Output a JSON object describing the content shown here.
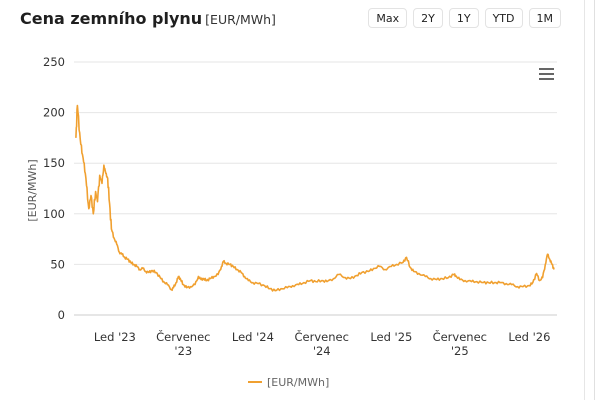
{
  "header": {
    "title": "Cena zemního plynu",
    "unit": "[EUR/MWh]"
  },
  "range_buttons": [
    "Max",
    "2Y",
    "1Y",
    "YTD",
    "1M"
  ],
  "menu_icon": "hamburger-menu-icon",
  "colors": {
    "series": "#f0a030",
    "grid": "#e6e6e6",
    "axis_text": "#333333"
  },
  "chart_data": {
    "type": "line",
    "title": "Cena zemního plynu",
    "ylabel": "[EUR/MWh]",
    "ylim": [
      0,
      250
    ],
    "yticks": [
      "0",
      "50",
      "100",
      "150",
      "200",
      "250"
    ],
    "xlim": [
      "2022-09-15",
      "2026-03-15"
    ],
    "xticks": [
      {
        "date": "2023-01-01",
        "label": [
          "Led '23"
        ]
      },
      {
        "date": "2023-07-01",
        "label": [
          "Červenec",
          "'23"
        ]
      },
      {
        "date": "2024-01-01",
        "label": [
          "Led '24"
        ]
      },
      {
        "date": "2024-07-01",
        "label": [
          "Červenec",
          "'24"
        ]
      },
      {
        "date": "2025-01-01",
        "label": [
          "Led '25"
        ]
      },
      {
        "date": "2025-07-01",
        "label": [
          "Červenec",
          "'25"
        ]
      },
      {
        "date": "2026-01-01",
        "label": [
          "Led '26"
        ]
      }
    ],
    "grid": "horizontal",
    "legend": "bottom",
    "series": [
      {
        "name": "[EUR/MWh]",
        "points": [
          [
            "2022-09-20",
            175
          ],
          [
            "2022-09-24",
            207
          ],
          [
            "2022-09-30",
            180
          ],
          [
            "2022-10-06",
            160
          ],
          [
            "2022-10-12",
            150
          ],
          [
            "2022-10-18",
            128
          ],
          [
            "2022-10-24",
            105
          ],
          [
            "2022-10-30",
            118
          ],
          [
            "2022-11-05",
            100
          ],
          [
            "2022-11-11",
            122
          ],
          [
            "2022-11-16",
            112
          ],
          [
            "2022-11-22",
            138
          ],
          [
            "2022-11-28",
            130
          ],
          [
            "2022-12-03",
            148
          ],
          [
            "2022-12-08",
            140
          ],
          [
            "2022-12-13",
            135
          ],
          [
            "2022-12-18",
            110
          ],
          [
            "2022-12-23",
            85
          ],
          [
            "2022-12-30",
            76
          ],
          [
            "2023-01-06",
            70
          ],
          [
            "2023-01-13",
            62
          ],
          [
            "2023-01-20",
            60
          ],
          [
            "2023-01-27",
            57
          ],
          [
            "2023-02-04",
            55
          ],
          [
            "2023-02-12",
            52
          ],
          [
            "2023-02-20",
            50
          ],
          [
            "2023-02-28",
            48
          ],
          [
            "2023-03-08",
            45
          ],
          [
            "2023-03-16",
            46
          ],
          [
            "2023-03-24",
            43
          ],
          [
            "2023-04-01",
            42
          ],
          [
            "2023-04-10",
            44
          ],
          [
            "2023-04-20",
            42
          ],
          [
            "2023-05-01",
            37
          ],
          [
            "2023-05-10",
            33
          ],
          [
            "2023-05-20",
            30
          ],
          [
            "2023-05-31",
            25
          ],
          [
            "2023-06-05",
            27
          ],
          [
            "2023-06-12",
            32
          ],
          [
            "2023-06-18",
            38
          ],
          [
            "2023-06-24",
            35
          ],
          [
            "2023-07-01",
            30
          ],
          [
            "2023-07-10",
            27
          ],
          [
            "2023-07-20",
            28
          ],
          [
            "2023-08-01",
            30
          ],
          [
            "2023-08-10",
            38
          ],
          [
            "2023-08-17",
            35
          ],
          [
            "2023-08-24",
            36
          ],
          [
            "2023-09-01",
            34
          ],
          [
            "2023-09-10",
            36
          ],
          [
            "2023-09-20",
            38
          ],
          [
            "2023-10-01",
            40
          ],
          [
            "2023-10-10",
            48
          ],
          [
            "2023-10-15",
            53
          ],
          [
            "2023-10-22",
            51
          ],
          [
            "2023-11-01",
            50
          ],
          [
            "2023-11-10",
            48
          ],
          [
            "2023-11-20",
            45
          ],
          [
            "2023-12-01",
            42
          ],
          [
            "2023-12-10",
            38
          ],
          [
            "2023-12-20",
            34
          ],
          [
            "2024-01-01",
            32
          ],
          [
            "2024-01-15",
            31
          ],
          [
            "2024-02-01",
            29
          ],
          [
            "2024-02-15",
            26
          ],
          [
            "2024-02-29",
            24
          ],
          [
            "2024-03-15",
            26
          ],
          [
            "2024-04-01",
            27
          ],
          [
            "2024-04-15",
            29
          ],
          [
            "2024-05-01",
            30
          ],
          [
            "2024-05-15",
            32
          ],
          [
            "2024-06-01",
            34
          ],
          [
            "2024-06-15",
            33
          ],
          [
            "2024-07-01",
            34
          ],
          [
            "2024-07-15",
            33
          ],
          [
            "2024-08-01",
            36
          ],
          [
            "2024-08-15",
            40
          ],
          [
            "2024-09-01",
            37
          ],
          [
            "2024-09-15",
            36
          ],
          [
            "2024-10-01",
            39
          ],
          [
            "2024-10-15",
            42
          ],
          [
            "2024-11-01",
            43
          ],
          [
            "2024-11-15",
            46
          ],
          [
            "2024-12-01",
            48
          ],
          [
            "2024-12-15",
            45
          ],
          [
            "2025-01-01",
            48
          ],
          [
            "2025-01-15",
            50
          ],
          [
            "2025-02-01",
            52
          ],
          [
            "2025-02-10",
            57
          ],
          [
            "2025-02-20",
            47
          ],
          [
            "2025-03-01",
            43
          ],
          [
            "2025-03-15",
            41
          ],
          [
            "2025-04-01",
            38
          ],
          [
            "2025-04-15",
            36
          ],
          [
            "2025-05-01",
            35
          ],
          [
            "2025-05-15",
            36
          ],
          [
            "2025-06-01",
            37
          ],
          [
            "2025-06-15",
            40
          ],
          [
            "2025-06-20",
            39
          ],
          [
            "2025-07-01",
            35
          ],
          [
            "2025-07-15",
            34
          ],
          [
            "2025-08-01",
            33
          ],
          [
            "2025-08-15",
            33
          ],
          [
            "2025-09-01",
            32
          ],
          [
            "2025-09-15",
            32
          ],
          [
            "2025-10-01",
            32
          ],
          [
            "2025-10-15",
            32
          ],
          [
            "2025-11-01",
            31
          ],
          [
            "2025-11-15",
            30
          ],
          [
            "2025-12-01",
            28
          ],
          [
            "2025-12-15",
            28
          ],
          [
            "2026-01-01",
            29
          ],
          [
            "2026-01-10",
            32
          ],
          [
            "2026-01-20",
            41
          ],
          [
            "2026-01-28",
            34
          ],
          [
            "2026-02-05",
            37
          ],
          [
            "2026-02-12",
            50
          ],
          [
            "2026-02-18",
            60
          ],
          [
            "2026-02-24",
            55
          ],
          [
            "2026-03-02",
            50
          ],
          [
            "2026-03-07",
            45
          ]
        ]
      }
    ]
  }
}
